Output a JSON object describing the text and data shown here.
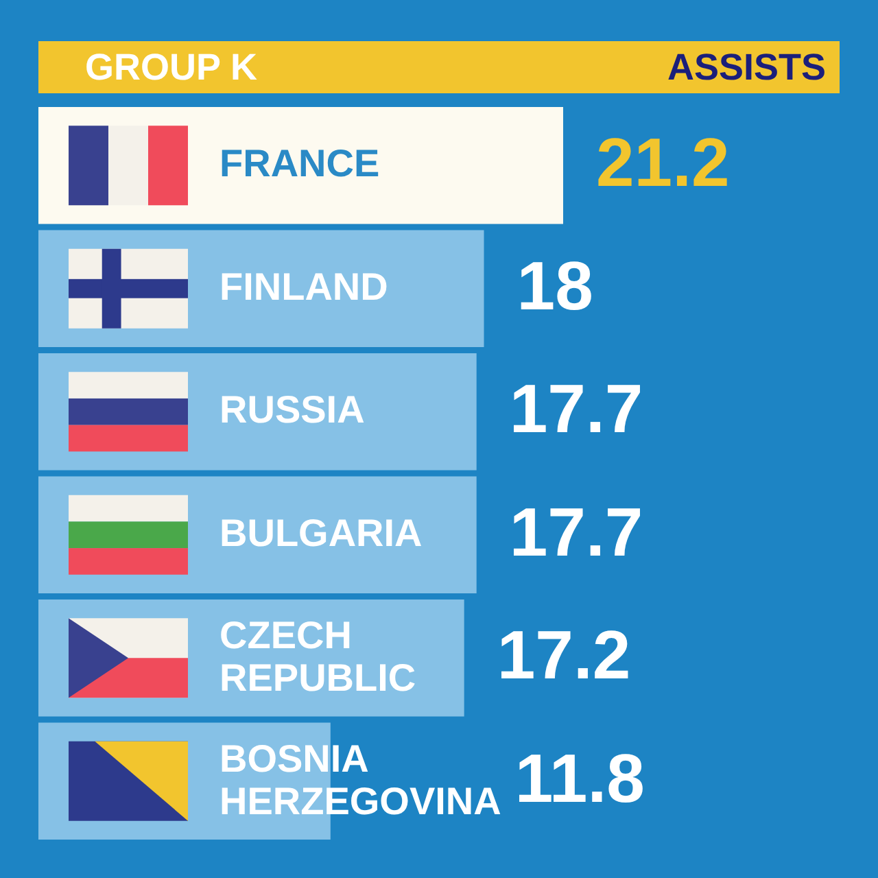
{
  "chart_data": {
    "type": "bar",
    "orientation": "horizontal",
    "title": "GROUP K",
    "xlabel": "ASSISTS",
    "categories": [
      "FRANCE",
      "FINLAND",
      "RUSSIA",
      "BULGARIA",
      "CZECH REPUBLIC",
      "BOSNIA HERZEGOVINA"
    ],
    "values": [
      21.2,
      18,
      17.7,
      17.7,
      17.2,
      11.8
    ],
    "colors": [
      "#fdfaf0",
      "#86c1e6",
      "#86c1e6",
      "#86c1e6",
      "#86c1e6",
      "#86c1e6"
    ],
    "data_labels": true
  }
}
